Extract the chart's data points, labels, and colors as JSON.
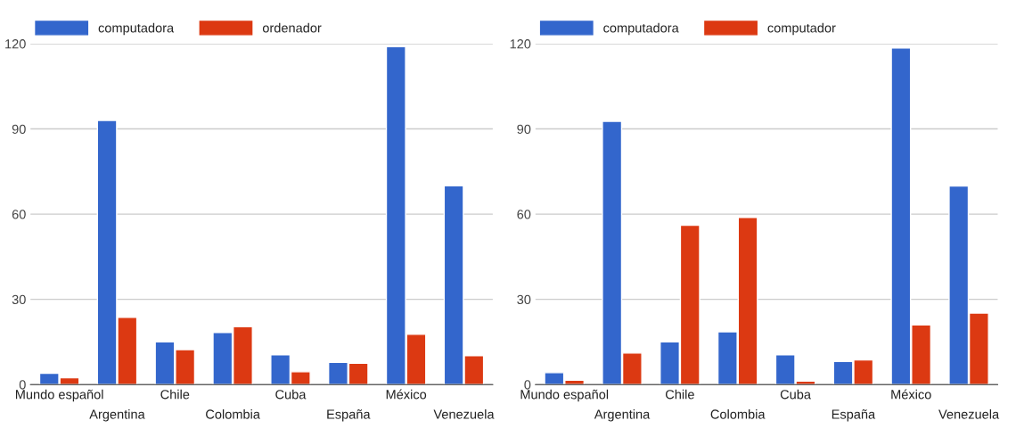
{
  "chart_data": [
    {
      "type": "bar",
      "categories": [
        "Mundo español",
        "Argentina",
        "Chile",
        "Colombia",
        "Cuba",
        "España",
        "México",
        "Venezuela"
      ],
      "series": [
        {
          "name": "computadora",
          "color": "#3366cc",
          "values": [
            4,
            93,
            15,
            18.3,
            10.5,
            7.8,
            119,
            70
          ]
        },
        {
          "name": "ordenador",
          "color": "#dc3912",
          "values": [
            2.4,
            23.7,
            12.3,
            20.4,
            4.5,
            7.5,
            17.7,
            10.2
          ]
        }
      ],
      "ylim": [
        0,
        120
      ],
      "yticks": [
        0,
        30,
        60,
        90,
        120
      ],
      "grid": "y",
      "legend": "top"
    },
    {
      "type": "bar",
      "categories": [
        "Mundo español",
        "Argentina",
        "Chile",
        "Colombia",
        "Cuba",
        "España",
        "México",
        "Venezuela"
      ],
      "series": [
        {
          "name": "computadora",
          "color": "#3366cc",
          "values": [
            4.2,
            92.7,
            15,
            18.6,
            10.5,
            8.1,
            118.5,
            69.9
          ]
        },
        {
          "name": "computador",
          "color": "#dc3912",
          "values": [
            1.5,
            11.1,
            56.1,
            58.8,
            1.2,
            8.7,
            21,
            25.2
          ]
        }
      ],
      "ylim": [
        0,
        120
      ],
      "yticks": [
        0,
        30,
        60,
        90,
        120
      ],
      "grid": "y",
      "legend": "top"
    }
  ]
}
